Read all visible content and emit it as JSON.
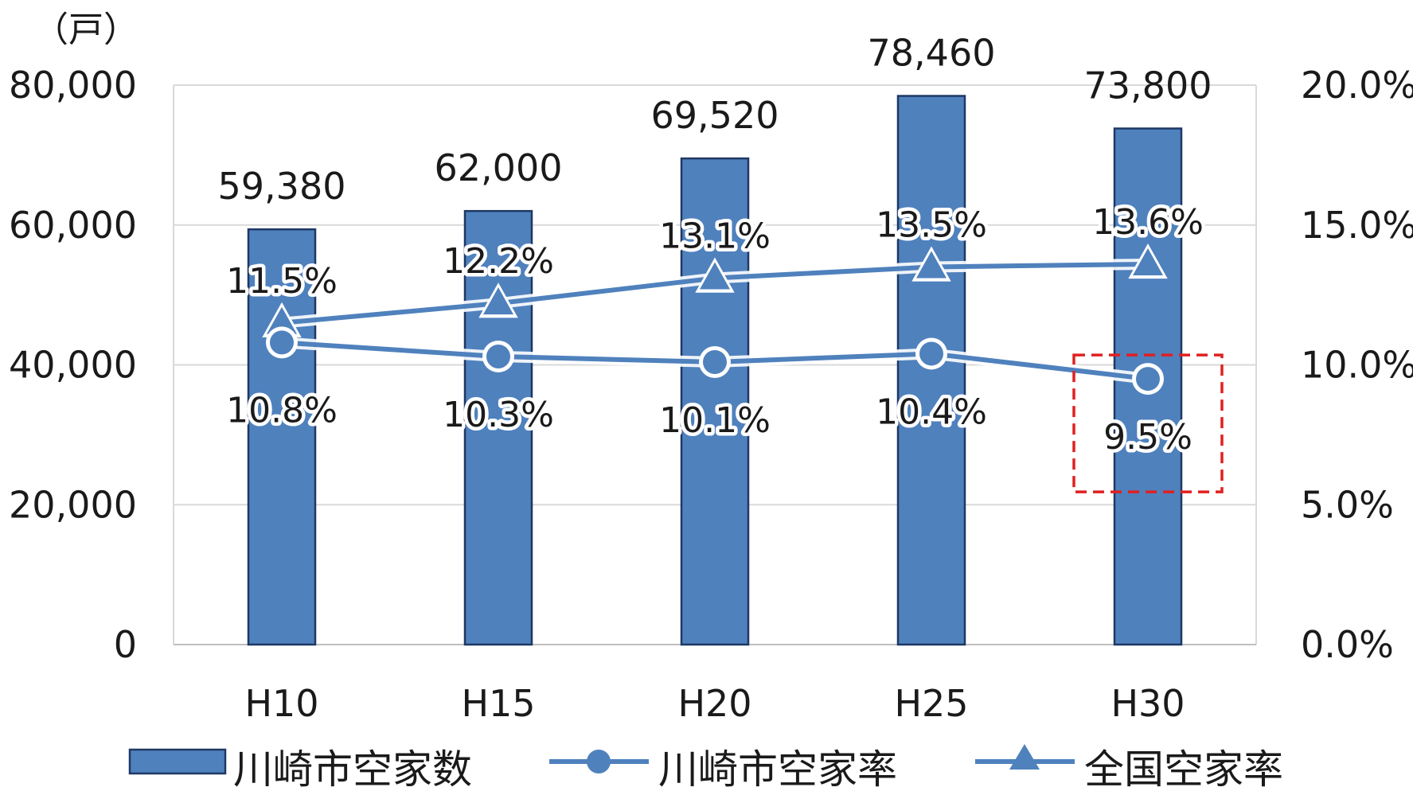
{
  "chart_data": {
    "type": "bar",
    "categories": [
      "H10",
      "H15",
      "H20",
      "H25",
      "H30"
    ],
    "y_left": {
      "unit": "（戸）",
      "range": [
        0,
        80000
      ],
      "ticks": [
        "0",
        "20,000",
        "40,000",
        "60,000",
        "80,000"
      ],
      "tick_values": [
        0,
        20000,
        40000,
        60000,
        80000
      ]
    },
    "y_right": {
      "range": [
        0,
        20
      ],
      "ticks": [
        "0.0%",
        "5.0%",
        "10.0%",
        "15.0%",
        "20.0%"
      ],
      "tick_values": [
        0,
        5,
        10,
        15,
        20
      ]
    },
    "grid": true,
    "legend_position": "bottom",
    "series": [
      {
        "name": "川崎市空家数",
        "type": "bar",
        "axis": "left",
        "color": "#4f81bd",
        "values": [
          59380,
          62000,
          69520,
          78460,
          73800
        ],
        "labels": [
          "59,380",
          "62,000",
          "69,520",
          "78,460",
          "73,800"
        ]
      },
      {
        "name": "川崎市空家率",
        "type": "line",
        "marker": "circle",
        "axis": "right",
        "color": "#4f81bd",
        "values": [
          10.8,
          10.3,
          10.1,
          10.4,
          9.5
        ],
        "labels": [
          "10.8%",
          "10.3%",
          "10.1%",
          "10.4%",
          "9.5%"
        ]
      },
      {
        "name": "全国空家率",
        "type": "line",
        "marker": "triangle",
        "axis": "right",
        "color": "#4f81bd",
        "values": [
          11.5,
          12.2,
          13.1,
          13.5,
          13.6
        ],
        "labels": [
          "11.5%",
          "12.2%",
          "13.1%",
          "13.5%",
          "13.6%"
        ]
      }
    ],
    "highlight": {
      "category": "H30",
      "series": "川崎市空家率",
      "style": "red dashed box",
      "color": "#e02020"
    }
  }
}
